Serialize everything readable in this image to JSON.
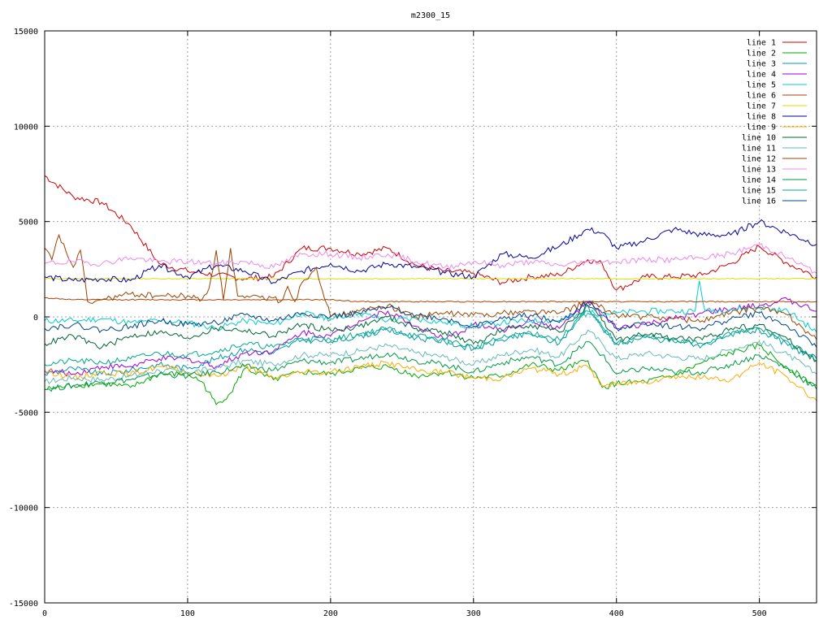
{
  "chart_data": {
    "type": "line",
    "title": "m2300_15",
    "xlabel": "",
    "ylabel": "",
    "xlim": [
      0,
      540
    ],
    "ylim": [
      -15000,
      15000
    ],
    "x_ticks": [
      0,
      100,
      200,
      300,
      400,
      500
    ],
    "y_ticks": [
      -15000,
      -10000,
      -5000,
      0,
      5000,
      10000,
      15000
    ],
    "grid": true,
    "legend_position": "top-right",
    "series": [
      {
        "name": "line 1",
        "color": "#cc0000",
        "x": [
          0,
          20,
          40,
          60,
          80,
          100,
          120,
          140,
          160,
          180,
          200,
          220,
          240,
          260,
          280,
          300,
          320,
          340,
          360,
          380,
          390,
          400,
          420,
          440,
          460,
          480,
          500,
          520,
          540
        ],
        "values": [
          7400,
          6300,
          6000,
          4800,
          2800,
          2400,
          2200,
          2000,
          2100,
          3600,
          3600,
          3300,
          3600,
          2700,
          2400,
          2300,
          1800,
          2100,
          2200,
          3000,
          2800,
          1400,
          2100,
          2100,
          2200,
          2800,
          3700,
          2800,
          2100
        ]
      },
      {
        "name": "line 2",
        "color": "#00aa00",
        "x": [
          0,
          20,
          40,
          60,
          80,
          100,
          110,
          120,
          130,
          140,
          160,
          180,
          200,
          220,
          240,
          260,
          280,
          300,
          320,
          340,
          360,
          380,
          390,
          400,
          420,
          440,
          460,
          480,
          500,
          520,
          540
        ],
        "values": [
          -3800,
          -3600,
          -3500,
          -3700,
          -3000,
          -3000,
          -3400,
          -4600,
          -4000,
          -2700,
          -3300,
          -2900,
          -3000,
          -2700,
          -2600,
          -3100,
          -2900,
          -3200,
          -3100,
          -2500,
          -2800,
          -2300,
          -3700,
          -3500,
          -3400,
          -3100,
          -2400,
          -1900,
          -1500,
          -2700,
          -3600
        ]
      },
      {
        "name": "line 3",
        "color": "#0099aa",
        "x": [
          0,
          20,
          40,
          60,
          80,
          100,
          120,
          140,
          160,
          180,
          200,
          220,
          240,
          260,
          280,
          300,
          320,
          340,
          360,
          380,
          390,
          400,
          420,
          440,
          460,
          480,
          500,
          520,
          540
        ],
        "values": [
          -3000,
          -2700,
          -3000,
          -2800,
          -2500,
          -2700,
          -2200,
          -1700,
          -1900,
          -1200,
          -1300,
          -1000,
          -700,
          -1100,
          -1300,
          -1700,
          -1200,
          -900,
          -1400,
          600,
          -600,
          -1400,
          -1000,
          -1200,
          -1500,
          -900,
          -700,
          -1500,
          -2200
        ]
      },
      {
        "name": "line 4",
        "color": "#9900dd",
        "x": [
          0,
          20,
          40,
          60,
          80,
          100,
          120,
          140,
          160,
          180,
          200,
          220,
          240,
          260,
          280,
          300,
          320,
          340,
          360,
          380,
          390,
          400,
          420,
          440,
          460,
          480,
          500,
          520,
          540
        ],
        "values": [
          -2800,
          -3000,
          -2600,
          -2600,
          -2200,
          -2200,
          -2600,
          -1900,
          -1800,
          -800,
          -1000,
          -200,
          300,
          -500,
          -1200,
          -400,
          -700,
          -200,
          -600,
          800,
          100,
          -600,
          -400,
          -100,
          200,
          400,
          600,
          900,
          300
        ]
      },
      {
        "name": "line 5",
        "color": "#00cccc",
        "x": [
          0,
          20,
          40,
          60,
          80,
          100,
          120,
          140,
          160,
          180,
          200,
          220,
          240,
          260,
          280,
          300,
          320,
          340,
          360,
          380,
          400,
          420,
          440,
          455,
          458,
          462,
          480,
          500,
          520,
          540
        ],
        "values": [
          -200,
          -200,
          -100,
          -300,
          -200,
          -300,
          -600,
          -200,
          -400,
          200,
          -100,
          200,
          -200,
          -100,
          -300,
          -500,
          -300,
          -200,
          -200,
          200,
          200,
          300,
          300,
          300,
          1900,
          300,
          400,
          500,
          300,
          -800
        ]
      },
      {
        "name": "line 6",
        "color": "#aa4400",
        "x": [
          0,
          20,
          40,
          60,
          80,
          100,
          120,
          140,
          160,
          180,
          200,
          220,
          240,
          260,
          280,
          300,
          320,
          340,
          360,
          380,
          400,
          420,
          440,
          460,
          480,
          500,
          520,
          540
        ],
        "values": [
          1000,
          900,
          900,
          900,
          900,
          900,
          900,
          900,
          900,
          900,
          900,
          800,
          800,
          800,
          800,
          800,
          800,
          800,
          800,
          800,
          800,
          800,
          800,
          800,
          800,
          800,
          800,
          800
        ]
      },
      {
        "name": "line 7",
        "color": "#dddd00",
        "x": [
          0,
          20,
          40,
          60,
          80,
          100,
          120,
          140,
          160,
          180,
          200,
          220,
          240,
          260,
          280,
          300,
          320,
          340,
          360,
          380,
          400,
          420,
          440,
          460,
          480,
          500,
          520,
          540
        ],
        "values": [
          2000,
          2000,
          2000,
          2000,
          2000,
          2000,
          2000,
          2000,
          2000,
          2000,
          2000,
          2000,
          2000,
          2000,
          2000,
          2000,
          2000,
          2000,
          2000,
          2000,
          2000,
          2000,
          2000,
          2000,
          2000,
          2000,
          2000,
          2000
        ]
      },
      {
        "name": "line 8",
        "color": "#000099",
        "x": [
          0,
          20,
          40,
          60,
          80,
          100,
          120,
          140,
          160,
          180,
          200,
          220,
          240,
          260,
          280,
          300,
          320,
          340,
          360,
          380,
          390,
          400,
          420,
          440,
          460,
          480,
          500,
          520,
          540
        ],
        "values": [
          2100,
          1900,
          2000,
          1900,
          2700,
          2100,
          2700,
          2400,
          1800,
          2400,
          2800,
          2400,
          2800,
          2600,
          2300,
          2100,
          3300,
          3100,
          3700,
          4600,
          4400,
          3600,
          4000,
          4600,
          4300,
          4300,
          5000,
          4400,
          3800
        ]
      },
      {
        "name": "line 9",
        "color": "#ffaa00",
        "x": [
          0,
          20,
          40,
          60,
          80,
          100,
          120,
          140,
          160,
          180,
          200,
          220,
          240,
          260,
          280,
          300,
          320,
          340,
          360,
          380,
          390,
          400,
          420,
          440,
          460,
          480,
          500,
          520,
          540
        ],
        "values": [
          -2800,
          -3200,
          -2900,
          -3000,
          -2600,
          -2900,
          -3100,
          -2600,
          -3200,
          -2900,
          -2900,
          -2600,
          -2400,
          -2800,
          -2900,
          -3200,
          -3200,
          -2700,
          -3000,
          -2600,
          -3600,
          -3500,
          -3400,
          -3100,
          -3200,
          -3300,
          -2400,
          -3200,
          -4400
        ]
      },
      {
        "name": "line 10",
        "color": "#006633",
        "x": [
          0,
          20,
          40,
          60,
          80,
          100,
          120,
          140,
          160,
          180,
          200,
          220,
          240,
          260,
          280,
          300,
          320,
          340,
          360,
          380,
          390,
          400,
          420,
          440,
          460,
          480,
          500,
          520,
          540
        ],
        "values": [
          -1400,
          -1000,
          -1600,
          -1000,
          -800,
          -1100,
          -600,
          -700,
          -1000,
          -400,
          -700,
          -500,
          0,
          -600,
          -800,
          -1400,
          -700,
          -400,
          -800,
          600,
          -200,
          -1200,
          -900,
          -1100,
          -1200,
          -600,
          -400,
          -1200,
          -2300
        ]
      },
      {
        "name": "line 11",
        "color": "#66bbbb",
        "x": [
          0,
          20,
          40,
          60,
          80,
          100,
          120,
          140,
          160,
          180,
          200,
          220,
          240,
          260,
          280,
          300,
          320,
          340,
          360,
          380,
          390,
          400,
          420,
          440,
          460,
          480,
          500,
          520,
          540
        ],
        "values": [
          -3400,
          -3200,
          -3300,
          -3100,
          -2800,
          -2900,
          -2700,
          -2300,
          -2500,
          -2000,
          -2000,
          -1800,
          -1500,
          -1900,
          -2100,
          -2500,
          -2000,
          -1700,
          -2100,
          -700,
          -1400,
          -2200,
          -1900,
          -2100,
          -2200,
          -1700,
          -1300,
          -2000,
          -3000
        ]
      },
      {
        "name": "line 12",
        "color": "#994400",
        "x": [
          0,
          5,
          10,
          15,
          20,
          25,
          30,
          35,
          40,
          60,
          80,
          100,
          110,
          115,
          120,
          125,
          130,
          135,
          140,
          160,
          165,
          170,
          175,
          180,
          190,
          200,
          220,
          240,
          260,
          280,
          300,
          320,
          340,
          360,
          380,
          400,
          420,
          440,
          460,
          480,
          500,
          520,
          540
        ],
        "values": [
          3600,
          3000,
          4300,
          3400,
          2600,
          3500,
          800,
          800,
          900,
          1200,
          1100,
          1100,
          900,
          1500,
          3500,
          900,
          3600,
          1100,
          1000,
          1000,
          800,
          1600,
          800,
          1800,
          2600,
          0,
          300,
          600,
          0,
          200,
          100,
          200,
          300,
          200,
          800,
          100,
          0,
          -100,
          -200,
          200,
          500,
          100,
          -1200
        ]
      },
      {
        "name": "line 13",
        "color": "#ee88ee",
        "x": [
          0,
          20,
          40,
          60,
          80,
          100,
          120,
          140,
          160,
          180,
          200,
          220,
          240,
          260,
          280,
          300,
          320,
          340,
          360,
          380,
          400,
          420,
          440,
          460,
          480,
          500,
          520,
          540
        ],
        "values": [
          2800,
          2900,
          2800,
          3100,
          2900,
          2900,
          2800,
          2900,
          2600,
          3300,
          3300,
          3100,
          3300,
          2900,
          2600,
          2900,
          2700,
          2900,
          2700,
          2900,
          2900,
          3000,
          3000,
          3100,
          3300,
          3800,
          3100,
          2300
        ]
      },
      {
        "name": "line 14",
        "color": "#009944",
        "x": [
          0,
          20,
          40,
          60,
          80,
          100,
          120,
          140,
          160,
          180,
          200,
          220,
          240,
          260,
          280,
          300,
          320,
          340,
          360,
          380,
          390,
          400,
          420,
          440,
          460,
          480,
          500,
          520,
          540
        ],
        "values": [
          -3800,
          -3600,
          -3400,
          -3300,
          -3000,
          -3100,
          -2900,
          -2600,
          -2800,
          -2300,
          -2400,
          -2200,
          -1900,
          -2300,
          -2500,
          -2900,
          -2400,
          -2100,
          -2500,
          -1300,
          -2000,
          -3000,
          -2700,
          -2900,
          -2900,
          -2500,
          -2000,
          -2700,
          -3800
        ]
      },
      {
        "name": "line 15",
        "color": "#00aa88",
        "x": [
          0,
          20,
          40,
          60,
          80,
          100,
          120,
          140,
          160,
          180,
          200,
          220,
          240,
          260,
          280,
          300,
          320,
          340,
          360,
          380,
          390,
          400,
          420,
          440,
          460,
          480,
          500,
          520,
          540
        ],
        "values": [
          -2500,
          -2300,
          -2400,
          -2200,
          -1900,
          -2000,
          -1800,
          -1400,
          -1600,
          -1100,
          -1200,
          -900,
          -600,
          -1000,
          -1200,
          -1600,
          -1100,
          -800,
          -1200,
          300,
          -500,
          -1400,
          -1100,
          -1300,
          -1400,
          -900,
          -600,
          -1300,
          -2300
        ]
      },
      {
        "name": "line 16",
        "color": "#004488",
        "x": [
          0,
          20,
          40,
          60,
          80,
          100,
          120,
          140,
          160,
          180,
          200,
          220,
          240,
          260,
          280,
          300,
          320,
          340,
          360,
          380,
          390,
          400,
          420,
          440,
          460,
          480,
          500,
          520,
          540
        ],
        "values": [
          -600,
          -400,
          -700,
          -500,
          -200,
          -400,
          -300,
          100,
          -200,
          200,
          0,
          200,
          500,
          100,
          -100,
          -500,
          -100,
          100,
          -300,
          800,
          200,
          -600,
          -300,
          -500,
          -600,
          -100,
          200,
          -500,
          -1600
        ]
      }
    ]
  }
}
